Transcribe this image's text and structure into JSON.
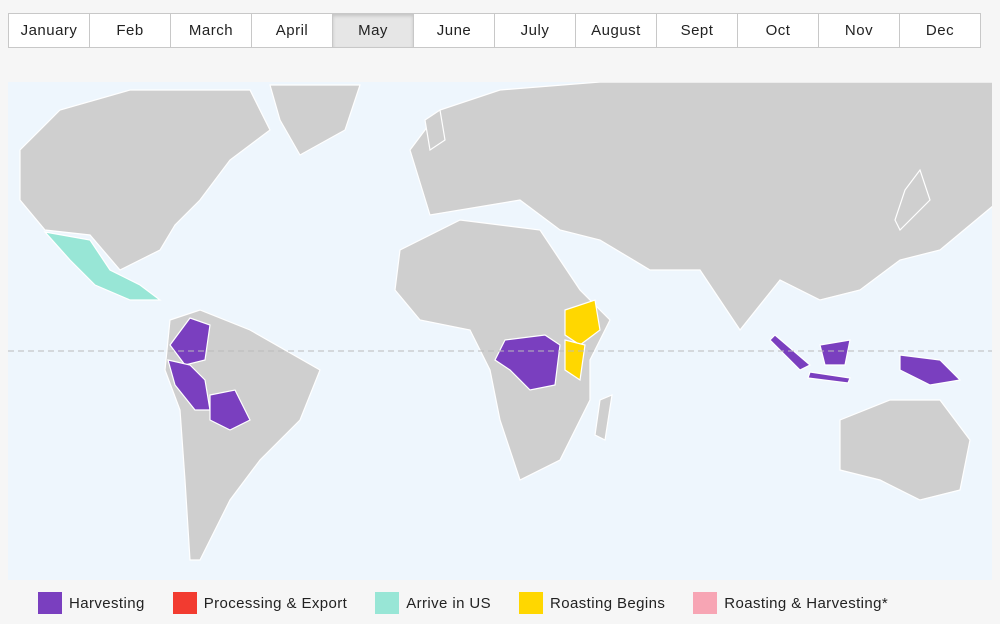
{
  "months": {
    "items": [
      "January",
      "Feb",
      "March",
      "April",
      "May",
      "June",
      "July",
      "August",
      "Sept",
      "Oct",
      "Nov",
      "Dec"
    ],
    "selected": 4
  },
  "legend": [
    {
      "label": "Harvesting",
      "color": "#7a3fbf"
    },
    {
      "label": "Processing & Export",
      "color": "#f23b30"
    },
    {
      "label": "Arrive in US",
      "color": "#98e6d6"
    },
    {
      "label": "Roasting Begins",
      "color": "#ffd700"
    },
    {
      "label": "Roasting & Harvesting*",
      "color": "#f7a5b4"
    }
  ]
}
